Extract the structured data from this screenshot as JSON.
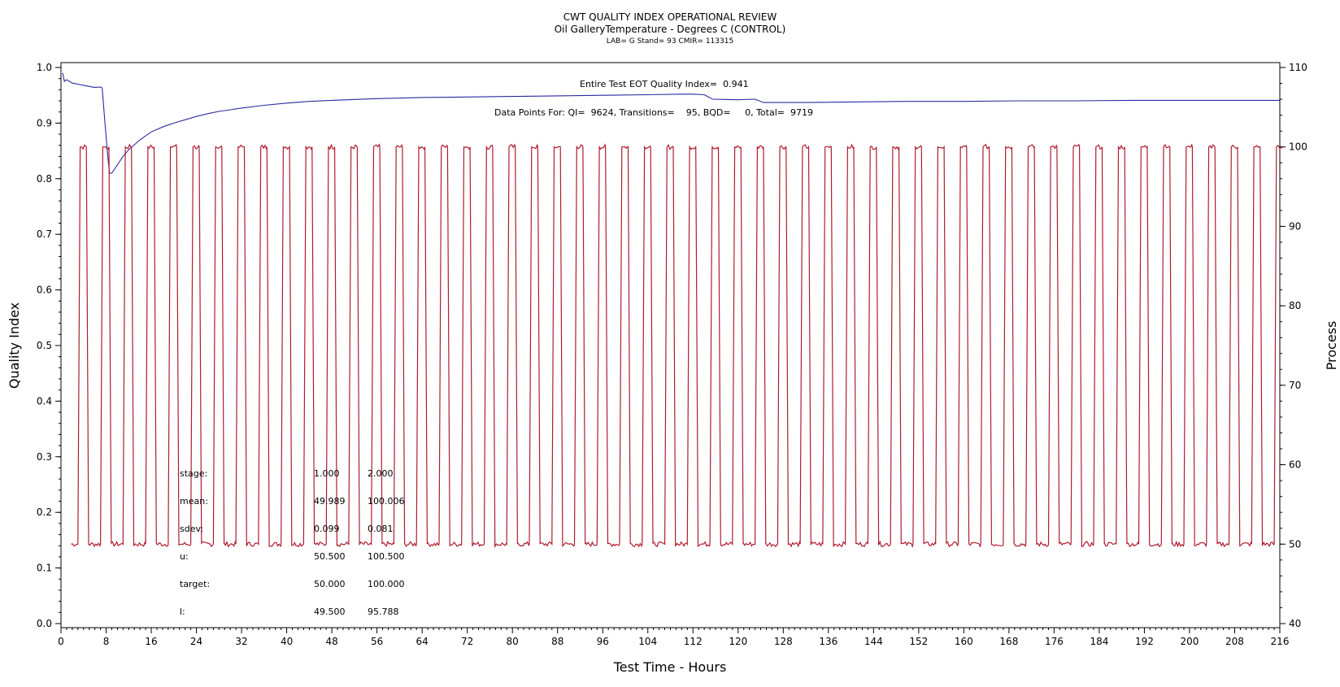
{
  "chart_data": {
    "type": "line",
    "title": "CWT QUALITY INDEX OPERATIONAL REVIEW",
    "subtitle": "Oil GalleryTemperature - Degrees C (CONTROL)",
    "subtitle2": "LAB= G Stand= 93 CMIR= 113315",
    "xlabel": "Test Time - Hours",
    "ylabel_left": "Quality Index",
    "ylabel_right": "Process",
    "xlim": [
      0,
      216
    ],
    "ylim_left": [
      0.0,
      1.0
    ],
    "ylim_right": [
      40,
      110
    ],
    "xticks": [
      0,
      8,
      16,
      24,
      32,
      40,
      48,
      56,
      64,
      72,
      80,
      88,
      96,
      104,
      112,
      120,
      128,
      136,
      144,
      152,
      160,
      168,
      176,
      184,
      192,
      200,
      208,
      216
    ],
    "yticks_left": [
      0.0,
      0.1,
      0.2,
      0.3,
      0.4,
      0.5,
      0.6,
      0.7,
      0.8,
      0.9,
      1.0
    ],
    "yticks_right": [
      40,
      50,
      60,
      70,
      80,
      90,
      100,
      110
    ],
    "annotations": {
      "quality_index": "Entire Test EOT Quality Index=  0.941",
      "data_points": "Data Points For: QI=  9624, Transitions=    95, BQD=     0, Total=  9719"
    },
    "stats_table": {
      "rows": [
        {
          "label": "stage:",
          "v1": "1.000",
          "v2": "2.000"
        },
        {
          "label": "mean:",
          "v1": "49.989",
          "v2": "100.006"
        },
        {
          "label": "sdev:",
          "v1": "0.099",
          "v2": "0.081"
        },
        {
          "label": "u:",
          "v1": "50.500",
          "v2": "100.500"
        },
        {
          "label": "target:",
          "v1": "50.000",
          "v2": "100.000"
        },
        {
          "label": "l:",
          "v1": "49.500",
          "v2": "95.788"
        }
      ]
    },
    "series": [
      {
        "role": "quality-index",
        "axis": "left",
        "color": "#2a2aa0",
        "points": [
          [
            0.3,
            0.99
          ],
          [
            0.6,
            0.975
          ],
          [
            1,
            0.978
          ],
          [
            2,
            0.972
          ],
          [
            3,
            0.97
          ],
          [
            4,
            0.968
          ],
          [
            5,
            0.966
          ],
          [
            6,
            0.964
          ],
          [
            7,
            0.965
          ],
          [
            7.3,
            0.963
          ],
          [
            7.8,
            0.9
          ],
          [
            8.3,
            0.84
          ],
          [
            8.6,
            0.81
          ],
          [
            9,
            0.81
          ],
          [
            10,
            0.825
          ],
          [
            11,
            0.84
          ],
          [
            12,
            0.852
          ],
          [
            14,
            0.87
          ],
          [
            16,
            0.884
          ],
          [
            18,
            0.893
          ],
          [
            20,
            0.9
          ],
          [
            22,
            0.906
          ],
          [
            24,
            0.912
          ],
          [
            26,
            0.917
          ],
          [
            28,
            0.921
          ],
          [
            30,
            0.924
          ],
          [
            32,
            0.927
          ],
          [
            36,
            0.932
          ],
          [
            40,
            0.936
          ],
          [
            44,
            0.939
          ],
          [
            48,
            0.941
          ],
          [
            56,
            0.944
          ],
          [
            64,
            0.946
          ],
          [
            72,
            0.947
          ],
          [
            80,
            0.948
          ],
          [
            88,
            0.949
          ],
          [
            96,
            0.95
          ],
          [
            104,
            0.951
          ],
          [
            110,
            0.952
          ],
          [
            112,
            0.952
          ],
          [
            114,
            0.951
          ],
          [
            115.5,
            0.943
          ],
          [
            120,
            0.942
          ],
          [
            123,
            0.943
          ],
          [
            124.5,
            0.937
          ],
          [
            132,
            0.937
          ],
          [
            140,
            0.938
          ],
          [
            150,
            0.939
          ],
          [
            160,
            0.939
          ],
          [
            170,
            0.94
          ],
          [
            180,
            0.94
          ],
          [
            190,
            0.941
          ],
          [
            200,
            0.941
          ],
          [
            210,
            0.941
          ],
          [
            216,
            0.941
          ]
        ]
      },
      {
        "role": "process",
        "axis": "right",
        "color": "#b01c2e",
        "pattern": "square-wave",
        "low_value": 50,
        "high_value": 100,
        "first_rise": 3,
        "period": 4,
        "high_duration": 1.5,
        "transition": 0.4,
        "end_x": 216
      }
    ]
  }
}
